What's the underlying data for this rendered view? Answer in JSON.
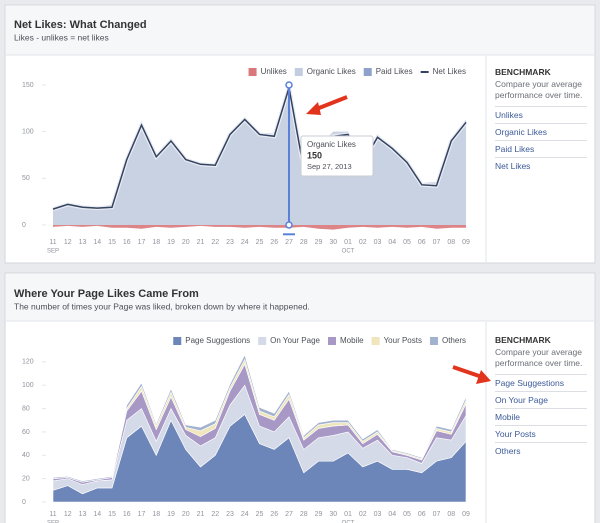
{
  "chart_data": [
    {
      "type": "area",
      "title": "Net Likes: What Changed",
      "subtitle": "Likes - unlikes = net likes",
      "categories": [
        "11",
        "12",
        "13",
        "14",
        "15",
        "16",
        "17",
        "18",
        "19",
        "20",
        "21",
        "22",
        "23",
        "24",
        "25",
        "26",
        "27",
        "28",
        "29",
        "30",
        "01",
        "02",
        "03",
        "04",
        "05",
        "06",
        "07",
        "08",
        "09"
      ],
      "month_labels": [
        "SEP",
        "OCT"
      ],
      "series": [
        {
          "name": "Unlikes",
          "color": "#d9777a",
          "style": "area",
          "values": [
            -2,
            -1,
            -2,
            -1,
            -3,
            -3,
            -4,
            -2,
            -3,
            -2,
            -1,
            -2,
            -2,
            -3,
            -2,
            -3,
            -3,
            -2,
            -4,
            -5,
            -3,
            -2,
            -3,
            -2,
            -3,
            -2,
            -4,
            -3,
            -3
          ]
        },
        {
          "name": "Organic Likes",
          "color": "#c3cde0",
          "style": "area",
          "values": [
            19,
            23,
            21,
            19,
            22,
            73,
            111,
            75,
            93,
            72,
            66,
            66,
            99,
            116,
            99,
            98,
            150,
            62,
            84,
            100,
            100,
            68,
            97,
            84,
            70,
            45,
            46,
            93,
            113
          ]
        },
        {
          "name": "Paid Likes",
          "color": "#8ea2cb",
          "style": "area",
          "values": [
            0,
            0,
            0,
            0,
            0,
            0,
            0,
            0,
            0,
            0,
            0,
            0,
            0,
            0,
            0,
            0,
            0,
            0,
            0,
            0,
            0,
            0,
            0,
            0,
            0,
            0,
            0,
            0,
            0
          ]
        },
        {
          "name": "Net Likes",
          "color": "#34425f",
          "style": "line",
          "values": [
            17,
            22,
            19,
            18,
            19,
            70,
            107,
            73,
            90,
            70,
            65,
            64,
            97,
            113,
            97,
            95,
            147,
            60,
            80,
            95,
            97,
            66,
            94,
            82,
            67,
            43,
            42,
            90,
            110
          ]
        }
      ],
      "ylim": [
        -10,
        155
      ],
      "yticks": [
        0,
        50,
        100,
        150
      ],
      "legend": "top-right",
      "tooltip": {
        "series": 1,
        "index": 16,
        "date": "Sep 27, 2013"
      }
    },
    {
      "type": "stacked_area",
      "title": "Where Your Page Likes Came From",
      "subtitle": "The number of times your Page was liked, broken down by where it happened.",
      "categories": [
        "11",
        "12",
        "13",
        "14",
        "15",
        "16",
        "17",
        "18",
        "19",
        "20",
        "21",
        "22",
        "23",
        "24",
        "25",
        "26",
        "27",
        "28",
        "29",
        "30",
        "01",
        "02",
        "03",
        "04",
        "05",
        "06",
        "07",
        "08",
        "09"
      ],
      "month_labels": [
        "SEP",
        "OCT"
      ],
      "series": [
        {
          "name": "Page Suggestions",
          "color": "#6d86b9",
          "values": [
            10,
            14,
            7,
            12,
            12,
            55,
            65,
            40,
            70,
            45,
            30,
            40,
            65,
            75,
            50,
            45,
            55,
            25,
            35,
            35,
            42,
            30,
            35,
            28,
            28,
            25,
            35,
            38,
            52
          ]
        },
        {
          "name": "On Your Page",
          "color": "#d4dae7",
          "values": [
            8,
            6,
            8,
            6,
            7,
            15,
            15,
            12,
            10,
            12,
            18,
            15,
            18,
            25,
            15,
            15,
            18,
            20,
            20,
            22,
            18,
            16,
            18,
            12,
            10,
            8,
            20,
            15,
            22
          ]
        },
        {
          "name": "Mobile",
          "color": "#a898c6",
          "values": [
            2,
            1,
            2,
            1,
            2,
            8,
            15,
            10,
            10,
            5,
            8,
            8,
            12,
            18,
            10,
            10,
            15,
            8,
            8,
            8,
            6,
            4,
            5,
            3,
            2,
            3,
            6,
            5,
            10
          ]
        },
        {
          "name": "Your Posts",
          "color": "#efe6bd",
          "values": [
            0,
            0,
            0,
            0,
            0,
            2,
            4,
            3,
            4,
            2,
            5,
            4,
            3,
            4,
            3,
            3,
            4,
            2,
            3,
            3,
            2,
            2,
            2,
            1,
            1,
            1,
            2,
            2,
            3
          ]
        },
        {
          "name": "Others",
          "color": "#a3b3cf",
          "values": [
            1,
            1,
            1,
            1,
            1,
            3,
            3,
            2,
            3,
            2,
            3,
            3,
            3,
            4,
            3,
            3,
            3,
            2,
            2,
            2,
            2,
            2,
            2,
            1,
            1,
            1,
            2,
            2,
            3
          ]
        }
      ],
      "ylim": [
        0,
        125
      ],
      "yticks": [
        0,
        20,
        40,
        60,
        80,
        100,
        120
      ],
      "legend": "top-right"
    }
  ],
  "sidebars": [
    {
      "heading": "BENCHMARK",
      "text": "Compare your average performance over time.",
      "items": [
        "Unlikes",
        "Organic Likes",
        "Paid Likes",
        "Net Likes"
      ]
    },
    {
      "heading": "BENCHMARK",
      "text": "Compare your average performance over time.",
      "items": [
        "Page Suggestions",
        "On Your Page",
        "Mobile",
        "Your Posts",
        "Others"
      ]
    }
  ]
}
